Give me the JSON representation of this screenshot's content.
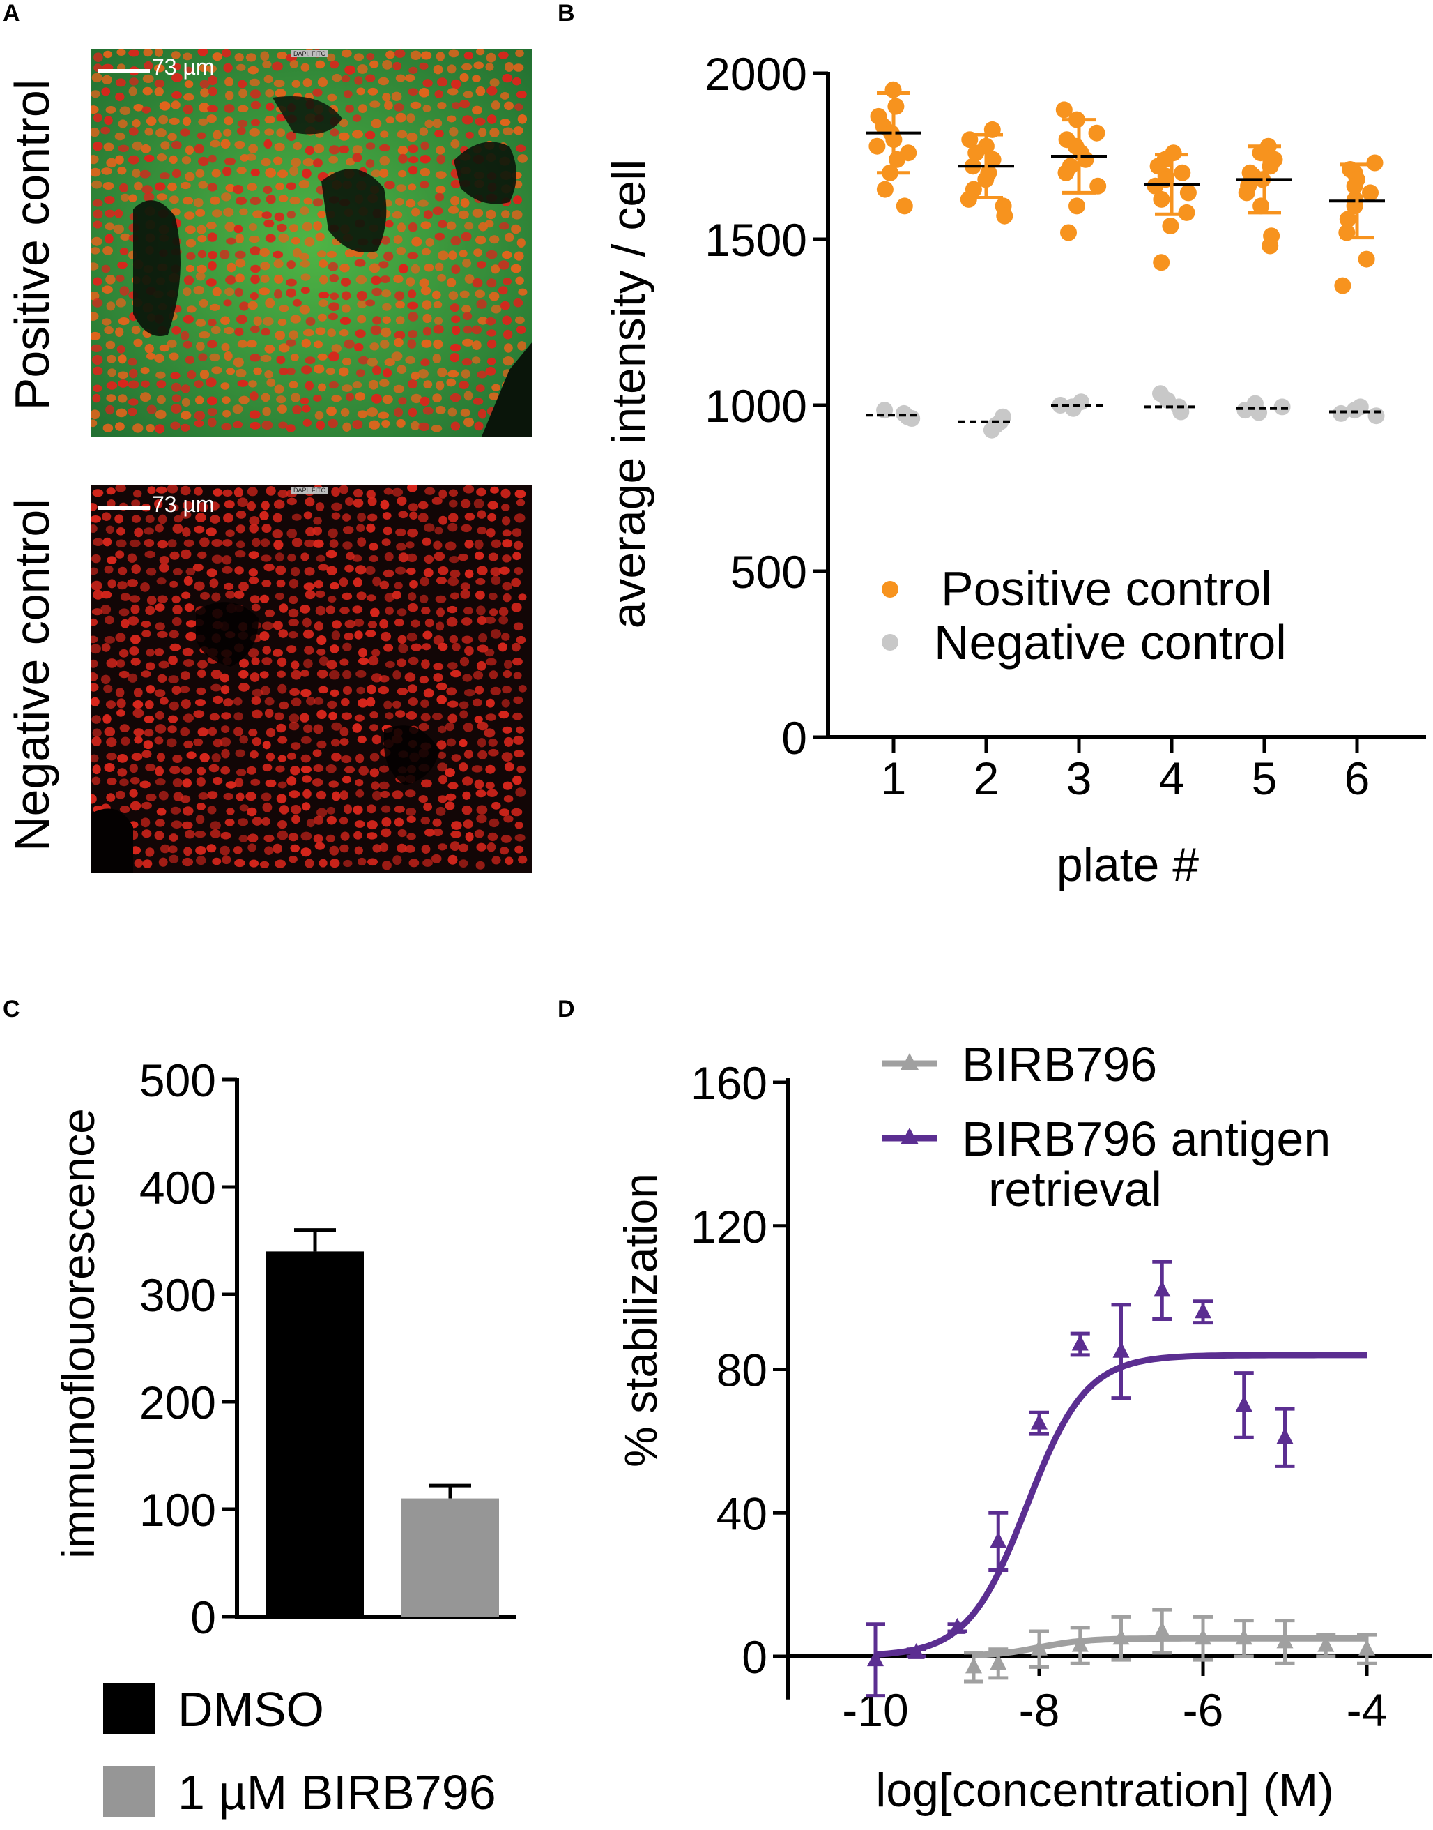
{
  "panels": {
    "a": {
      "letter": "A",
      "top_image": {
        "label": "Positive control",
        "scale_text": "73 µm",
        "channel_text": "DAPI, FITC"
      },
      "bottom_image": {
        "label": "Negative control",
        "scale_text": "73 µm",
        "channel_text": "DAPI, FITC"
      }
    },
    "b": {
      "letter": "B"
    },
    "c": {
      "letter": "C"
    },
    "d": {
      "letter": "D"
    }
  },
  "colors": {
    "positive": "#f7931e",
    "negative": "#c8c8c8",
    "dmso": "#000000",
    "birb_bar": "#969696",
    "birb_line": "#a0a0a0",
    "antigen_line": "#5b2e91",
    "micro_green": "#3fae3f",
    "micro_red": "#d8261c"
  },
  "chart_data": [
    {
      "panel": "B",
      "type": "scatter",
      "xlabel": "plate #",
      "ylabel": "average intensity / cell",
      "categories": [
        "1",
        "2",
        "3",
        "4",
        "5",
        "6"
      ],
      "ylim": [
        0,
        2000
      ],
      "yticks": [
        0,
        500,
        1000,
        1500,
        2000
      ],
      "legend": [
        {
          "label": "Positive control",
          "color_key": "positive"
        },
        {
          "label": "Negative control",
          "color_key": "negative"
        }
      ],
      "series": [
        {
          "name": "Positive control",
          "mean": [
            1820,
            1720,
            1750,
            1665,
            1680,
            1615
          ],
          "sd": [
            120,
            95,
            110,
            90,
            100,
            110
          ],
          "points": [
            [
              1950,
              1900,
              1870,
              1840,
              1820,
              1800,
              1780,
              1760,
              1740,
              1700,
              1650,
              1600
            ],
            [
              1830,
              1800,
              1780,
              1760,
              1740,
              1720,
              1700,
              1680,
              1650,
              1620,
              1600,
              1570
            ],
            [
              1890,
              1860,
              1820,
              1800,
              1780,
              1760,
              1740,
              1720,
              1700,
              1660,
              1600,
              1520
            ],
            [
              1760,
              1740,
              1720,
              1700,
              1690,
              1680,
              1660,
              1640,
              1620,
              1580,
              1540,
              1430
            ],
            [
              1780,
              1760,
              1740,
              1720,
              1700,
              1690,
              1680,
              1660,
              1640,
              1600,
              1510,
              1480
            ],
            [
              1730,
              1710,
              1700,
              1680,
              1660,
              1640,
              1620,
              1600,
              1560,
              1520,
              1440,
              1360
            ]
          ]
        },
        {
          "name": "Negative control",
          "mean": [
            970,
            950,
            1000,
            995,
            990,
            980
          ],
          "sd": [
            10,
            12,
            10,
            12,
            10,
            10
          ],
          "points": [
            [
              985,
              975,
              965,
              960
            ],
            [
              965,
              950,
              940,
              925
            ],
            [
              1010,
              1000,
              995,
              990
            ],
            [
              1035,
              1015,
              995,
              980
            ],
            [
              1005,
              995,
              985,
              978
            ],
            [
              995,
              985,
              975,
              968
            ]
          ]
        }
      ]
    },
    {
      "panel": "C",
      "type": "bar",
      "ylabel": "immunoflouorescence",
      "categories": [
        "DMSO",
        "1 µM BIRB796"
      ],
      "values": [
        340,
        110
      ],
      "errors": [
        20,
        12
      ],
      "ylim": [
        0,
        500
      ],
      "yticks": [
        0,
        100,
        200,
        300,
        400,
        500
      ],
      "legend": [
        {
          "label": "DMSO",
          "color_key": "dmso"
        },
        {
          "label": "1 µM BIRB796",
          "color_key": "birb_bar"
        }
      ]
    },
    {
      "panel": "D",
      "type": "line",
      "xlabel": "log[concentration] (M)",
      "ylabel": "% stabilization",
      "xlim": [
        -10.7,
        -3.5
      ],
      "ylim": [
        -12,
        165
      ],
      "xticks": [
        -10,
        -8,
        -6,
        -4
      ],
      "yticks": [
        0,
        40,
        80,
        120,
        160
      ],
      "legend": [
        {
          "label": "BIRB796",
          "color_key": "birb_line"
        },
        {
          "label": "BIRB796 antigen retrieval",
          "color_key": "antigen_line"
        }
      ],
      "series": [
        {
          "name": "BIRB796",
          "fit": {
            "bottom": 0,
            "top": 5,
            "log_ec50": -8.0,
            "hill": 1.5
          },
          "points": [
            {
              "x": -8.8,
              "y": -3,
              "err": 4
            },
            {
              "x": -8.5,
              "y": -2,
              "err": 4
            },
            {
              "x": -8.0,
              "y": 2,
              "err": 5
            },
            {
              "x": -7.5,
              "y": 3,
              "err": 5
            },
            {
              "x": -7.0,
              "y": 5,
              "err": 6
            },
            {
              "x": -6.5,
              "y": 7,
              "err": 6
            },
            {
              "x": -6.0,
              "y": 5,
              "err": 6
            },
            {
              "x": -5.5,
              "y": 5,
              "err": 5
            },
            {
              "x": -5.0,
              "y": 4,
              "err": 6
            },
            {
              "x": -4.5,
              "y": 3,
              "err": 3
            },
            {
              "x": -4.0,
              "y": 2,
              "err": 4
            }
          ]
        },
        {
          "name": "BIRB796 antigen retrieval",
          "fit": {
            "bottom": 0,
            "top": 84,
            "log_ec50": -8.15,
            "hill": 1.2
          },
          "points": [
            {
              "x": -10.0,
              "y": -1,
              "err": 10
            },
            {
              "x": -9.5,
              "y": 1,
              "err": 1
            },
            {
              "x": -9.0,
              "y": 8,
              "err": 1
            },
            {
              "x": -8.5,
              "y": 32,
              "err": 8
            },
            {
              "x": -8.0,
              "y": 65,
              "err": 3
            },
            {
              "x": -7.5,
              "y": 87,
              "err": 3
            },
            {
              "x": -7.0,
              "y": 85,
              "err": 13
            },
            {
              "x": -6.5,
              "y": 102,
              "err": 8
            },
            {
              "x": -6.0,
              "y": 96,
              "err": 3
            },
            {
              "x": -5.5,
              "y": 70,
              "err": 9
            },
            {
              "x": -5.0,
              "y": 61,
              "err": 8
            }
          ]
        }
      ]
    }
  ]
}
